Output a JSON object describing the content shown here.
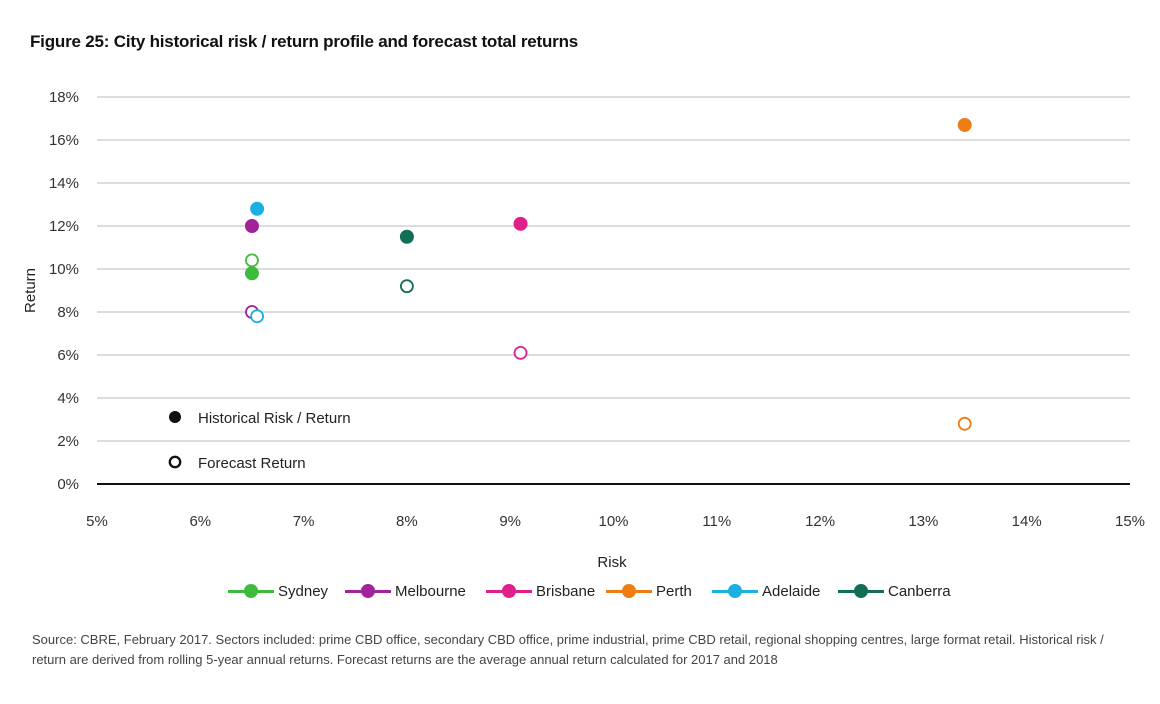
{
  "figure": {
    "title": "Figure 25: City historical risk / return profile and forecast total returns",
    "source": "Source: CBRE, February 2017.  Sectors included: prime CBD office, secondary CBD office, prime industrial, prime CBD retail, regional shopping centres, large format retail. Historical risk / return are derived from rolling 5-year annual returns.  Forecast returns are the average annual return calculated for 2017 and 2018"
  },
  "chart_data": {
    "type": "scatter",
    "xlabel": "Risk",
    "ylabel": "Return",
    "xlim": [
      5,
      15
    ],
    "ylim": [
      0,
      18
    ],
    "x_ticks": [
      "5%",
      "6%",
      "7%",
      "8%",
      "9%",
      "10%",
      "11%",
      "12%",
      "13%",
      "14%",
      "15%"
    ],
    "y_ticks": [
      "0%",
      "2%",
      "4%",
      "6%",
      "8%",
      "10%",
      "12%",
      "14%",
      "16%",
      "18%"
    ],
    "grid": "horizontal",
    "marker_legend": {
      "historical": "Historical Risk / Return",
      "forecast": "Forecast Return"
    },
    "series": [
      {
        "name": "Sydney",
        "color": "#3dbb3d",
        "historical": {
          "x": 6.5,
          "y": 9.8
        },
        "forecast": {
          "x": 6.5,
          "y": 10.4
        }
      },
      {
        "name": "Melbourne",
        "color": "#a0239a",
        "historical": {
          "x": 6.5,
          "y": 12.0
        },
        "forecast": {
          "x": 6.5,
          "y": 8.0
        }
      },
      {
        "name": "Brisbane",
        "color": "#e0208a",
        "historical": {
          "x": 9.1,
          "y": 12.1
        },
        "forecast": {
          "x": 9.1,
          "y": 6.1
        }
      },
      {
        "name": "Perth",
        "color": "#ee7d14",
        "historical": {
          "x": 13.4,
          "y": 16.7
        },
        "forecast": {
          "x": 13.4,
          "y": 2.8
        }
      },
      {
        "name": "Adelaide",
        "color": "#1cb0e2",
        "historical": {
          "x": 6.55,
          "y": 12.8
        },
        "forecast": {
          "x": 6.55,
          "y": 7.8
        }
      },
      {
        "name": "Canberra",
        "color": "#116e58",
        "historical": {
          "x": 8.0,
          "y": 11.5
        },
        "forecast": {
          "x": 8.0,
          "y": 9.2
        }
      }
    ],
    "legend_position": "bottom"
  }
}
